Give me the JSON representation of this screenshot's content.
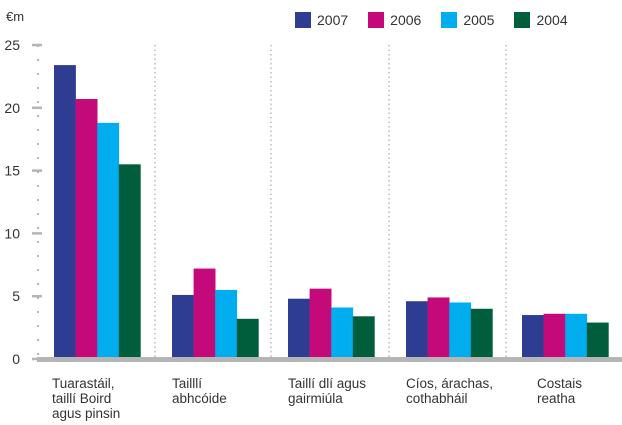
{
  "chart_data": {
    "type": "bar",
    "unit_label": "€m",
    "categories": [
      [
        "Tuarastáil,",
        "taillí Boird",
        "agus pinsin"
      ],
      [
        "Tailllí",
        "abhcóide"
      ],
      [
        "Taillí dlí agus",
        "gairmiúla"
      ],
      [
        "Cíos, árachas,",
        "cothabháil"
      ],
      [
        "Costais",
        "reatha"
      ]
    ],
    "series": [
      {
        "name": "2007",
        "color": "#2e3d91",
        "values": [
          23.4,
          5.1,
          4.8,
          4.6,
          3.5
        ]
      },
      {
        "name": "2006",
        "color": "#c4097b",
        "values": [
          20.7,
          7.2,
          5.6,
          4.9,
          3.6
        ]
      },
      {
        "name": "2005",
        "color": "#00aeef",
        "values": [
          18.8,
          5.5,
          4.1,
          4.5,
          3.6
        ]
      },
      {
        "name": "2004",
        "color": "#005e3c",
        "values": [
          15.5,
          3.2,
          3.4,
          4.0,
          2.9
        ]
      }
    ],
    "y_ticks": [
      0,
      5,
      10,
      15,
      20,
      25
    ],
    "ylim": [
      0,
      25
    ],
    "legend_position": "top-right",
    "grid": "vertical-dotted"
  }
}
